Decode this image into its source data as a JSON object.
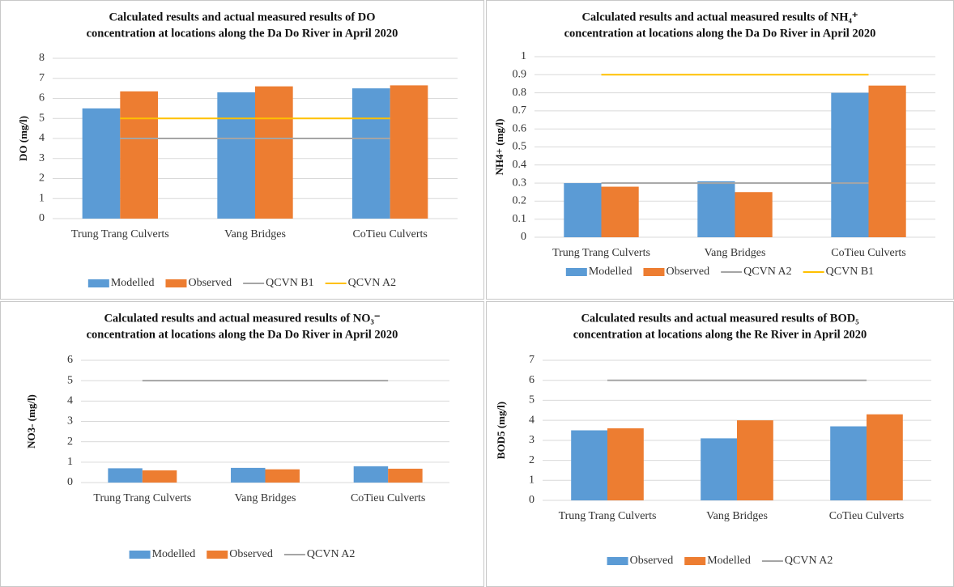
{
  "chart_data": [
    {
      "type": "bar",
      "title": [
        "Calculated results and actual measured results of DO",
        "concentration at locations along the Da Do River in April 2020"
      ],
      "y_label": "DO (mg/l)",
      "categories": [
        "Trung Trang Culverts",
        "Vang Bridges",
        "CoTieu Culverts"
      ],
      "series": [
        {
          "name": "Modelled",
          "type": "bar",
          "color": "#5b9bd5",
          "values": [
            5.5,
            6.3,
            6.5
          ]
        },
        {
          "name": "Observed",
          "type": "bar",
          "color": "#ed7d31",
          "values": [
            6.35,
            6.6,
            6.65
          ]
        },
        {
          "name": "QCVN B1",
          "type": "line",
          "color": "#a5a5a5",
          "values": [
            4,
            4,
            4
          ]
        },
        {
          "name": "QCVN A2",
          "type": "line",
          "color": "#ffc000",
          "values": [
            5,
            5,
            5
          ]
        }
      ],
      "ylim": [
        0,
        8
      ],
      "yticks": [
        0,
        1,
        2,
        3,
        4,
        5,
        6,
        7,
        8
      ],
      "grid": true
    },
    {
      "type": "bar",
      "title": [
        "Calculated results and actual measured results of NH₄⁺",
        "concentration at locations along the Da Do River in April 2020"
      ],
      "y_label": "NH4+ (mg/l)",
      "categories": [
        "Trung Trang Culverts",
        "Vang Bridges",
        "CoTieu Culverts"
      ],
      "series": [
        {
          "name": "Modelled",
          "type": "bar",
          "color": "#5b9bd5",
          "values": [
            0.3,
            0.31,
            0.8
          ]
        },
        {
          "name": "Observed",
          "type": "bar",
          "color": "#ed7d31",
          "values": [
            0.28,
            0.25,
            0.84
          ]
        },
        {
          "name": "QCVN A2",
          "type": "line",
          "color": "#a5a5a5",
          "values": [
            0.3,
            0.3,
            0.3
          ]
        },
        {
          "name": "QCVN B1",
          "type": "line",
          "color": "#ffc000",
          "values": [
            0.9,
            0.9,
            0.9
          ]
        }
      ],
      "ylim": [
        0,
        1
      ],
      "yticks": [
        0,
        0.1,
        0.2,
        0.3,
        0.4,
        0.5,
        0.6,
        0.7,
        0.8,
        0.9,
        1
      ],
      "grid": true
    },
    {
      "type": "bar",
      "title": [
        "Calculated results and actual measured results of NO₃⁻",
        "concentration at locations along the Da Do River in April 2020"
      ],
      "y_label": "NO3- (mg/l)",
      "categories": [
        "Trung Trang Culverts",
        "Vang Bridges",
        "CoTieu Culverts"
      ],
      "series": [
        {
          "name": "Modelled",
          "type": "bar",
          "color": "#5b9bd5",
          "values": [
            0.7,
            0.72,
            0.8
          ]
        },
        {
          "name": "Observed",
          "type": "bar",
          "color": "#ed7d31",
          "values": [
            0.6,
            0.65,
            0.68
          ]
        },
        {
          "name": "QCVN A2",
          "type": "line",
          "color": "#a5a5a5",
          "values": [
            5,
            5,
            5
          ]
        }
      ],
      "ylim": [
        0,
        6
      ],
      "yticks": [
        0,
        1,
        2,
        3,
        4,
        5,
        6
      ],
      "grid": true
    },
    {
      "type": "bar",
      "title": [
        "Calculated results and actual measured results of BOD₅",
        "concentration at locations along the Re River in April 2020"
      ],
      "y_label": "BOD5 (mg/l)",
      "categories": [
        "Trung Trang Culverts",
        "Vang Bridges",
        "CoTieu Culverts"
      ],
      "series": [
        {
          "name": "Observed",
          "type": "bar",
          "color": "#5b9bd5",
          "values": [
            3.5,
            3.1,
            3.7
          ]
        },
        {
          "name": "Modelled",
          "type": "bar",
          "color": "#ed7d31",
          "values": [
            3.6,
            4.0,
            4.3
          ]
        },
        {
          "name": "QCVN A2",
          "type": "line",
          "color": "#a5a5a5",
          "values": [
            6,
            6,
            6
          ]
        }
      ],
      "ylim": [
        0,
        7
      ],
      "yticks": [
        0,
        1,
        2,
        3,
        4,
        5,
        6,
        7
      ],
      "grid": true
    }
  ]
}
